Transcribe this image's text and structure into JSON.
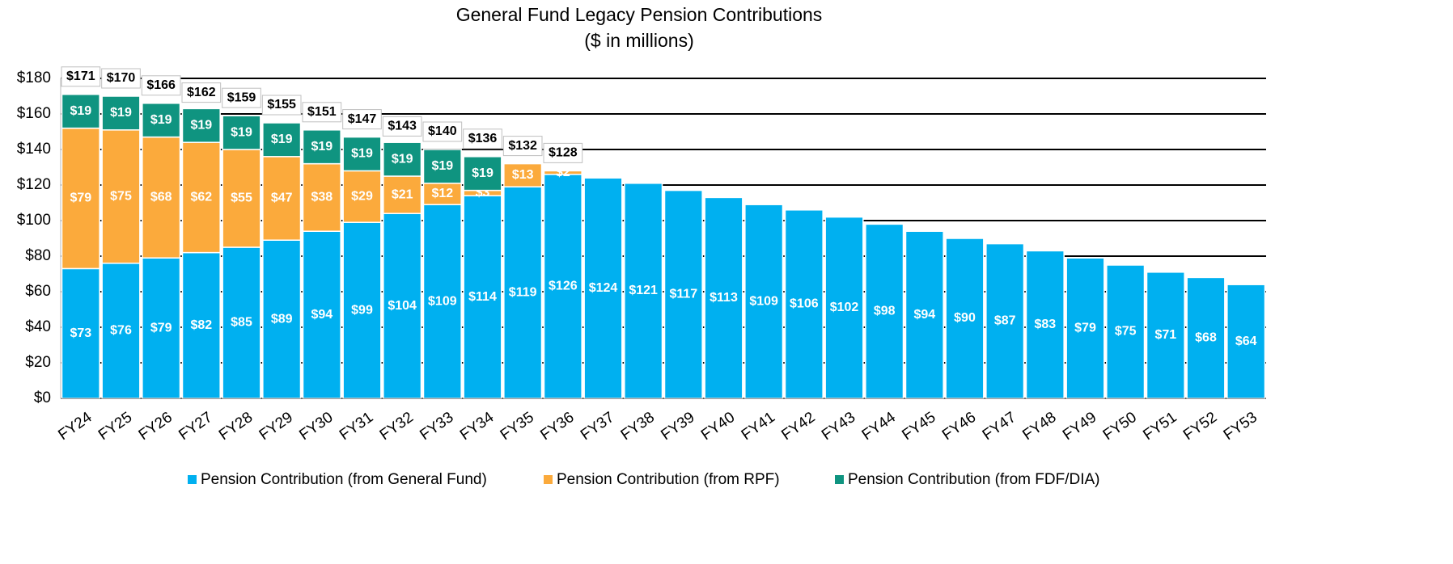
{
  "chart_data": {
    "type": "stacked_bar",
    "title": "General Fund Legacy Pension Contributions",
    "subtitle": "($ in millions)",
    "categories": [
      "FY24",
      "FY25",
      "FY26",
      "FY27",
      "FY28",
      "FY29",
      "FY30",
      "FY31",
      "FY32",
      "FY33",
      "FY34",
      "FY35",
      "FY36",
      "FY37",
      "FY38",
      "FY39",
      "FY40",
      "FY41",
      "FY42",
      "FY43",
      "FY44",
      "FY45",
      "FY46",
      "FY47",
      "FY48",
      "FY49",
      "FY50",
      "FY51",
      "FY52",
      "FY53"
    ],
    "series": [
      {
        "name": "Pension Contribution (from General Fund)",
        "color": "#00b0f0",
        "values": [
          73,
          76,
          79,
          82,
          85,
          89,
          94,
          99,
          104,
          109,
          114,
          119,
          126,
          124,
          121,
          117,
          113,
          109,
          106,
          102,
          98,
          94,
          90,
          87,
          83,
          79,
          75,
          71,
          68,
          64
        ],
        "value_labels": [
          "$73",
          "$76",
          "$79",
          "$82",
          "$85",
          "$89",
          "$94",
          "$99",
          "$104",
          "$109",
          "$114",
          "$119",
          "$126",
          "$124",
          "$121",
          "$117",
          "$113",
          "$109",
          "$106",
          "$102",
          "$98",
          "$94",
          "$90",
          "$87",
          "$83",
          "$79",
          "$75",
          "$71",
          "$68",
          "$64"
        ]
      },
      {
        "name": "Pension Contribution (from RPF)",
        "color": "#fbaa3c",
        "values": [
          79,
          75,
          68,
          62,
          55,
          47,
          38,
          29,
          21,
          12,
          3,
          13,
          2,
          null,
          null,
          null,
          null,
          null,
          null,
          null,
          null,
          null,
          null,
          null,
          null,
          null,
          null,
          null,
          null,
          null
        ],
        "value_labels": [
          "$79",
          "$75",
          "$68",
          "$62",
          "$55",
          "$47",
          "$38",
          "$29",
          "$21",
          "$12",
          "$3",
          "$13",
          "$2",
          null,
          null,
          null,
          null,
          null,
          null,
          null,
          null,
          null,
          null,
          null,
          null,
          null,
          null,
          null,
          null,
          null
        ]
      },
      {
        "name": "Pension Contribution (from FDF/DIA)",
        "color": "#0f9480",
        "values": [
          19,
          19,
          19,
          19,
          19,
          19,
          19,
          19,
          19,
          19,
          19,
          null,
          null,
          null,
          null,
          null,
          null,
          null,
          null,
          null,
          null,
          null,
          null,
          null,
          null,
          null,
          null,
          null,
          null,
          null
        ],
        "value_labels": [
          "$19",
          "$19",
          "$19",
          "$19",
          "$19",
          "$19",
          "$19",
          "$19",
          "$19",
          "$19",
          "$19",
          null,
          null,
          null,
          null,
          null,
          null,
          null,
          null,
          null,
          null,
          null,
          null,
          null,
          null,
          null,
          null,
          null,
          null,
          null
        ]
      }
    ],
    "totals": {
      "values": [
        171,
        170,
        166,
        162,
        159,
        155,
        151,
        147,
        143,
        140,
        136,
        132,
        128,
        null,
        null,
        null,
        null,
        null,
        null,
        null,
        null,
        null,
        null,
        null,
        null,
        null,
        null,
        null,
        null,
        null
      ],
      "value_labels": [
        "$171",
        "$170",
        "$166",
        "$162",
        "$159",
        "$155",
        "$151",
        "$147",
        "$143",
        "$140",
        "$136",
        "$132",
        "$128",
        null,
        null,
        null,
        null,
        null,
        null,
        null,
        null,
        null,
        null,
        null,
        null,
        null,
        null,
        null,
        null,
        null
      ]
    },
    "ylim": [
      0,
      180
    ],
    "yticks": [
      {
        "value": 0,
        "label": "$0"
      },
      {
        "value": 20,
        "label": "$20"
      },
      {
        "value": 40,
        "label": "$40"
      },
      {
        "value": 60,
        "label": "$60"
      },
      {
        "value": 80,
        "label": "$80"
      },
      {
        "value": 100,
        "label": "$100"
      },
      {
        "value": 120,
        "label": "$120"
      },
      {
        "value": 140,
        "label": "$140"
      },
      {
        "value": 160,
        "label": "$160"
      },
      {
        "value": 180,
        "label": "$180"
      }
    ],
    "grid": true,
    "grid_color": "#000000",
    "legend": "bottom"
  }
}
